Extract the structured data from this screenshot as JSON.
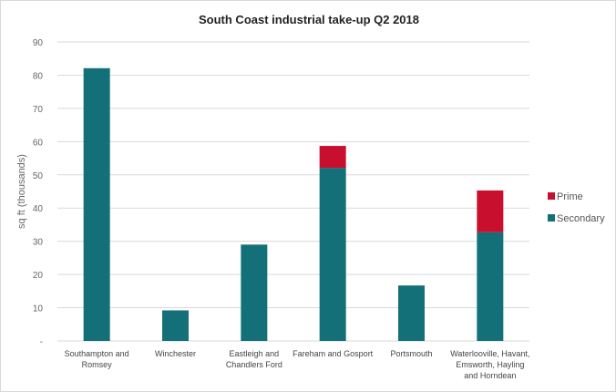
{
  "chart_data": {
    "type": "bar",
    "stacked": true,
    "title": "South Coast industrial take-up Q2 2018",
    "xlabel": "",
    "ylabel": "sq ft  (thousands)",
    "ylim": [
      0,
      90
    ],
    "yticks": [
      "-",
      "10",
      "20",
      "30",
      "40",
      "50",
      "60",
      "70",
      "80",
      "90"
    ],
    "grid": true,
    "legend_position": "right",
    "categories": [
      [
        "Southampton and",
        "Romsey"
      ],
      [
        "Winchester"
      ],
      [
        "Eastleigh and",
        "Chandlers Ford"
      ],
      [
        "Fareham and Gosport"
      ],
      [
        "Portsmouth"
      ],
      [
        "Waterlooville, Havant,",
        "Emsworth, Hayling",
        "and Horndean"
      ]
    ],
    "series": [
      {
        "name": "Secondary",
        "color": "#137079",
        "values": [
          82.1,
          9.2,
          29.0,
          52.1,
          16.7,
          32.7
        ]
      },
      {
        "name": "Prime",
        "color": "#c8102e",
        "values": [
          0,
          0,
          0,
          6.6,
          0,
          12.6
        ]
      }
    ],
    "legend": [
      "Prime",
      "Secondary"
    ]
  }
}
